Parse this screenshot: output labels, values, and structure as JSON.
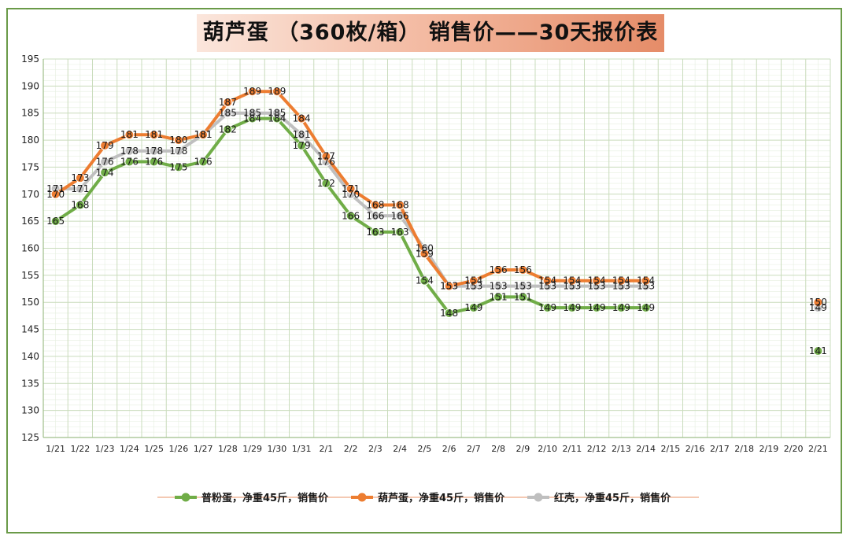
{
  "chart_data": {
    "type": "line",
    "title": "葫芦蛋 （360枚/箱） 销售价——30天报价表",
    "categories": [
      "1/21",
      "1/22",
      "1/23",
      "1/24",
      "1/25",
      "1/26",
      "1/27",
      "1/28",
      "1/29",
      "1/30",
      "1/31",
      "2/1",
      "2/2",
      "2/3",
      "2/4",
      "2/5",
      "2/6",
      "2/7",
      "2/8",
      "2/9",
      "2/10",
      "2/11",
      "2/12",
      "2/13",
      "2/14",
      "2/15",
      "2/16",
      "2/17",
      "2/18",
      "2/19",
      "2/20",
      "2/21"
    ],
    "ylim": [
      125,
      195
    ],
    "yticks": [
      125,
      130,
      135,
      140,
      145,
      150,
      155,
      160,
      165,
      170,
      175,
      180,
      185,
      190,
      195
    ],
    "grid": true,
    "legend_position": "bottom",
    "series": [
      {
        "name": "普粉蛋，净重45斤，销售价",
        "color": "#70ad47",
        "values": [
          165,
          168,
          174,
          176,
          176,
          175,
          176,
          182,
          184,
          184,
          179,
          172,
          166,
          163,
          163,
          154,
          148,
          149,
          151,
          151,
          149,
          149,
          149,
          149,
          149,
          null,
          null,
          null,
          null,
          null,
          null,
          141
        ]
      },
      {
        "name": "红壳，净重45斤，销售价",
        "color": "#bfbfbf",
        "values": [
          171,
          171,
          176,
          178,
          178,
          178,
          181,
          185,
          185,
          185,
          181,
          176,
          170,
          166,
          166,
          160,
          153,
          153,
          153,
          153,
          153,
          153,
          153,
          153,
          153,
          null,
          null,
          null,
          null,
          null,
          null,
          149
        ]
      },
      {
        "name": "葫芦蛋，净重45斤，销售价",
        "color": "#ed7d31",
        "values": [
          170,
          173,
          179,
          181,
          181,
          180,
          181,
          187,
          189,
          189,
          184,
          177,
          171,
          168,
          168,
          159,
          153,
          154,
          156,
          156,
          154,
          154,
          154,
          154,
          154,
          null,
          null,
          null,
          null,
          null,
          null,
          150
        ]
      }
    ]
  }
}
